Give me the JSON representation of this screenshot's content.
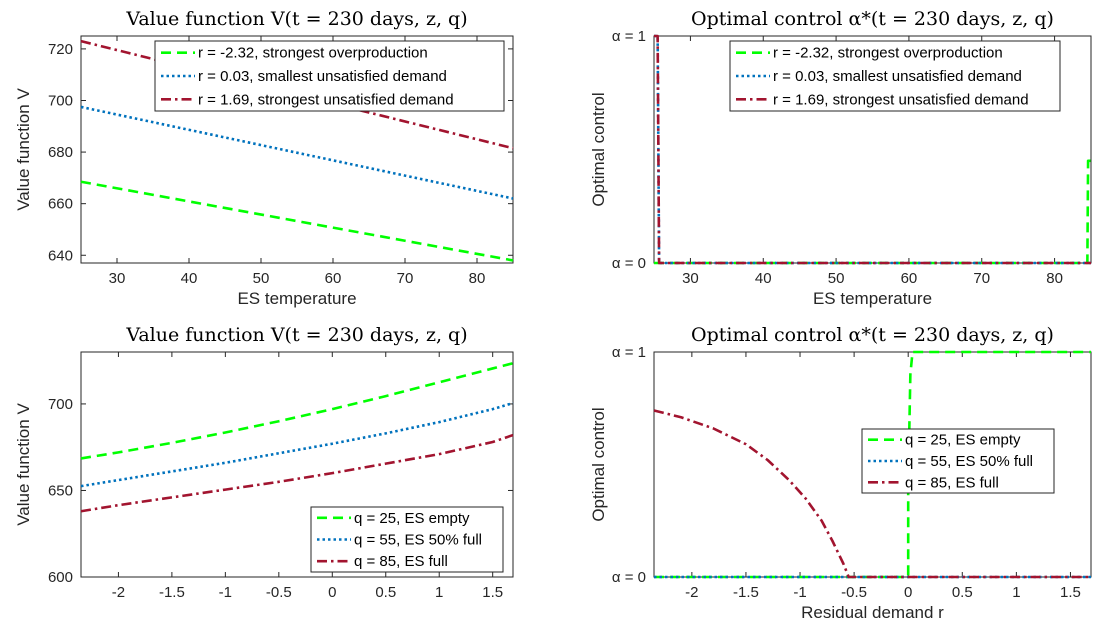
{
  "chart_data": [
    {
      "type": "line",
      "title": "Value function V(t = 230 days, z, q)",
      "xlabel": "ES temperature",
      "ylabel": "Value function V",
      "xlim": [
        25,
        85
      ],
      "ylim": [
        637,
        725
      ],
      "xticks": [
        30,
        40,
        50,
        60,
        70,
        80
      ],
      "yticks": [
        640,
        660,
        680,
        700,
        720
      ],
      "legend_position": "top-right",
      "series": [
        {
          "name": "r = -2.32, strongest overproduction",
          "color": "#00ff00",
          "dash": "dashed",
          "x": [
            25,
            85
          ],
          "y": [
            668.5,
            638
          ]
        },
        {
          "name": "r = 0.03, smallest unsatisfied demand",
          "color": "#0072bd",
          "dash": "dotted",
          "x": [
            25,
            85
          ],
          "y": [
            697.5,
            662
          ]
        },
        {
          "name": "r = 1.69, strongest unsatisfied demand",
          "color": "#a2142f",
          "dash": "dashdot",
          "x": [
            25,
            85
          ],
          "y": [
            723,
            681.5
          ]
        }
      ]
    },
    {
      "type": "line",
      "title": "Optimal control α*(t = 230 days, z, q)",
      "xlabel": "ES temperature",
      "ylabel": "Optimal control",
      "xlim": [
        25,
        85
      ],
      "ylim": [
        0,
        1
      ],
      "xticks": [
        30,
        40,
        50,
        60,
        70,
        80
      ],
      "yticks": [
        0,
        1
      ],
      "ytick_labels": [
        "α = 0",
        "α = 1"
      ],
      "legend_position": "top-right",
      "series": [
        {
          "name": "r = -2.32, strongest overproduction",
          "color": "#00ff00",
          "dash": "dashed",
          "x": [
            25,
            84.5,
            84.6,
            85
          ],
          "y": [
            0,
            0,
            0.45,
            0.45
          ]
        },
        {
          "name": "r = 0.03, smallest unsatisfied demand",
          "color": "#0072bd",
          "dash": "dotted",
          "x": [
            25,
            25.5,
            25.7,
            85
          ],
          "y": [
            1,
            1,
            0,
            0
          ]
        },
        {
          "name": "r = 1.69, strongest unsatisfied demand",
          "color": "#a2142f",
          "dash": "dashdot",
          "x": [
            25,
            25.5,
            25.7,
            85
          ],
          "y": [
            1,
            1,
            0,
            0
          ]
        }
      ]
    },
    {
      "type": "line",
      "title": "Value function V(t = 230 days, z, q)",
      "xlabel": "",
      "ylabel": "Value function V",
      "xlim": [
        -2.35,
        1.69
      ],
      "ylim": [
        600,
        730
      ],
      "xticks": [
        -2,
        -1.5,
        -1,
        -0.5,
        0,
        0.5,
        1,
        1.5
      ],
      "yticks": [
        600,
        650,
        700
      ],
      "legend_position": "bottom-right",
      "series": [
        {
          "name": "q = 25, ES empty",
          "color": "#00ff00",
          "dash": "dashed",
          "x": [
            -2.35,
            -2,
            -1.5,
            -1,
            -0.5,
            0,
            0.5,
            1,
            1.5,
            1.69
          ],
          "y": [
            668.5,
            672,
            677.5,
            683.5,
            690,
            697,
            704.5,
            712.5,
            720.5,
            723.5
          ]
        },
        {
          "name": "q = 55, ES 50% full",
          "color": "#0072bd",
          "dash": "dotted",
          "x": [
            -2.35,
            -2,
            -1.5,
            -1,
            -0.5,
            0,
            0.5,
            1,
            1.5,
            1.69
          ],
          "y": [
            652.5,
            656,
            661,
            666,
            671.5,
            677,
            683,
            689.5,
            697,
            700.5
          ]
        },
        {
          "name": "q = 85, ES full",
          "color": "#a2142f",
          "dash": "dashdot",
          "x": [
            -2.35,
            -2,
            -1.5,
            -1,
            -0.5,
            0,
            0.5,
            1,
            1.5,
            1.69
          ],
          "y": [
            638,
            641.5,
            646,
            650.5,
            655,
            660,
            665.5,
            671,
            678,
            682
          ]
        }
      ]
    },
    {
      "type": "line",
      "title": "Optimal control α*(t = 230 days, z, q)",
      "xlabel": "Residual demand r",
      "ylabel": "Optimal control",
      "xlim": [
        -2.35,
        1.69
      ],
      "ylim": [
        0,
        1
      ],
      "xticks": [
        -2,
        -1.5,
        -1,
        -0.5,
        0,
        0.5,
        1,
        1.5
      ],
      "yticks": [
        0,
        1
      ],
      "ytick_labels": [
        "α = 0",
        "α = 1"
      ],
      "legend_position": "right",
      "series": [
        {
          "name": "q = 25, ES empty",
          "color": "#00ff00",
          "dash": "dashed",
          "x": [
            -2.35,
            0.0,
            0.0,
            0.02,
            0.04,
            1.69
          ],
          "y": [
            0,
            0,
            0.4,
            0.9,
            1,
            1
          ]
        },
        {
          "name": "q = 55, ES 50% full",
          "color": "#0072bd",
          "dash": "dotted",
          "x": [
            -2.35,
            1.69
          ],
          "y": [
            0,
            0
          ]
        },
        {
          "name": "q = 85, ES full",
          "color": "#a2142f",
          "dash": "dashdot",
          "x": [
            -2.35,
            -2.1,
            -1.8,
            -1.5,
            -1.3,
            -1.1,
            -0.95,
            -0.8,
            -0.7,
            -0.6,
            -0.55,
            1.69
          ],
          "y": [
            0.74,
            0.71,
            0.66,
            0.59,
            0.52,
            0.43,
            0.35,
            0.25,
            0.16,
            0.06,
            0,
            0
          ]
        }
      ]
    }
  ]
}
